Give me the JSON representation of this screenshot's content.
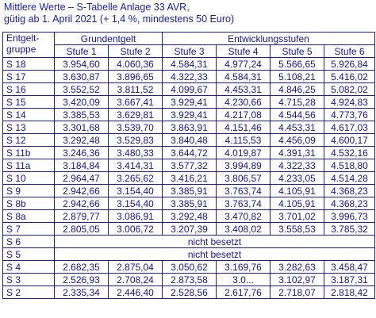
{
  "title": {
    "line1": "Mittlere Werte – S-Tabelle Anlage 33 AVR,",
    "line2": "gütig ab 1. April 2021 (+ 1,4 %, mindestens 50 Euro)"
  },
  "table": {
    "group_header_line1": "Entgelt-",
    "group_header_line2": "gruppe",
    "grundentgelt_header": "Grundentgelt",
    "entwicklung_header": "Entwicklungsstufen",
    "stufen": [
      "Stufe 1",
      "Stufe 2",
      "Stufe 3",
      "Stufe 4",
      "Stufe 5",
      "Stufe 6"
    ],
    "rows": [
      {
        "group": "S 18",
        "values": [
          "3.954,60",
          "4.060,36",
          "4.584,31",
          "4.977,24",
          "5.566,65",
          "5.926,84"
        ]
      },
      {
        "group": "S 17",
        "values": [
          "3.630,87",
          "3.896,65",
          "4.322,33",
          "4.584,31",
          "5.108,21",
          "5.416,02"
        ]
      },
      {
        "group": "S 16",
        "values": [
          "3.552,52",
          "3.811,52",
          "4.099,67",
          "4.453,31",
          "4.846,25",
          "5.082,02"
        ]
      },
      {
        "group": "S 15",
        "values": [
          "3.420,09",
          "3.667,41",
          "3.929,41",
          "4.230,66",
          "4.715,28",
          "4.924,83"
        ]
      },
      {
        "group": "S 14",
        "values": [
          "3.385,53",
          "3.629,81",
          "3.929,41",
          "4.217,08",
          "4.544,56",
          "4.773,76"
        ]
      },
      {
        "group": "S 13",
        "values": [
          "3.301,68",
          "3.539,70",
          "3.863,91",
          "4.151,46",
          "4.453,31",
          "4.617,03"
        ]
      },
      {
        "group": "S 12",
        "values": [
          "3.292,48",
          "3.529,83",
          "3.840,48",
          "4.115,53",
          "4.456,09",
          "4.600,17"
        ]
      },
      {
        "group": "S 11b",
        "values": [
          "3.246,36",
          "3.480,33",
          "3.644,72",
          "4.019,87",
          "4.391,31",
          "4.532,16"
        ]
      },
      {
        "group": "S 11a",
        "values": [
          "3.184,84",
          "3.414,31",
          "3.577,32",
          "3.994,89",
          "4.322,33",
          "4.518,80"
        ]
      },
      {
        "group": "S 10",
        "values": [
          "2.964,47",
          "3.265,62",
          "3.416,21",
          "3.806,57",
          "4.233,05",
          "4.514,28"
        ]
      },
      {
        "group": "S 9",
        "values": [
          "2.942,66",
          "3.154,40",
          "3.385,91",
          "3.763,74",
          "4.105,91",
          "4.368,23"
        ]
      },
      {
        "group": "S 8b",
        "values": [
          "2.942,66",
          "3.154,40",
          "3.385,91",
          "3.763,74",
          "4.105,91",
          "4.368,23"
        ]
      },
      {
        "group": "S 8a",
        "values": [
          "2.879,77",
          "3.086,91",
          "3.292,48",
          "3.470,82",
          "3.701,02",
          "3.996,73"
        ]
      },
      {
        "group": "S 7",
        "values": [
          "2.805,05",
          "3.006,72",
          "3.207,39",
          "3.408,02",
          "3.558,53",
          "3.785,32"
        ]
      },
      {
        "group": "S 6",
        "span": "nicht besetzt"
      },
      {
        "group": "S 5",
        "span": "nicht besetzt"
      },
      {
        "group": "S 4",
        "values": [
          "2.682,35",
          "2.875,04",
          "3.050,62",
          "3.169,76",
          "3.282,63",
          "3.458,47"
        ]
      },
      {
        "group": "S 3",
        "values": [
          "2.526,93",
          "2.708,24",
          "2.873,58",
          "3.0...",
          "3.102,97",
          "3.187,31"
        ]
      },
      {
        "group": "S 2",
        "values": [
          "2.335,34",
          "2.446,40",
          "2.528,56",
          "2.617,76",
          "2.718,07",
          "2.818,42"
        ]
      }
    ]
  }
}
